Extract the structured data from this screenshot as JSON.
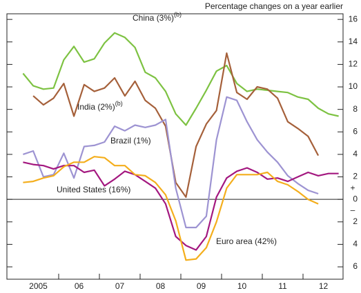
{
  "chart_data": {
    "type": "line",
    "subtitle": "Percentage changes on a year earlier",
    "categories": [
      null,
      "2005",
      null,
      null,
      null,
      "06",
      null,
      null,
      null,
      "07",
      null,
      null,
      null,
      "08",
      null,
      null,
      null,
      "09",
      null,
      null,
      null,
      "10",
      null,
      null,
      null,
      "11",
      null,
      null,
      null,
      "12",
      null,
      null
    ],
    "ylim": [
      -7.1,
      16.5
    ],
    "yticks": [
      16,
      14,
      12,
      10,
      8,
      6,
      4,
      2,
      0,
      {
        "value": -2,
        "label": "2"
      },
      {
        "value": -4,
        "label": "4"
      },
      {
        "value": -6,
        "label": "6"
      }
    ],
    "axis_signs": [
      "+",
      "–"
    ],
    "series": [
      {
        "name": "China (3%)",
        "note": "(b)",
        "color": "#7dc242",
        "values": [
          11.2,
          10.1,
          9.8,
          9.9,
          12.4,
          13.6,
          12.2,
          12.5,
          13.9,
          14.8,
          14.4,
          13.5,
          11.3,
          10.8,
          9.6,
          7.6,
          6.6,
          8.1,
          9.7,
          11.4,
          11.9,
          10.3,
          9.6,
          9.8,
          9.7,
          9.6,
          9.5,
          9.1,
          8.9,
          8.1,
          7.6,
          7.4
        ]
      },
      {
        "name": "India (2%)",
        "note": "(b)",
        "color": "#a5603a",
        "values": [
          null,
          9.2,
          8.4,
          9.0,
          10.3,
          7.4,
          10.2,
          9.6,
          9.9,
          10.8,
          9.2,
          10.5,
          8.8,
          8.1,
          6.5,
          1.5,
          0.2,
          4.7,
          6.7,
          7.9,
          13.0,
          9.5,
          8.9,
          10.0,
          9.8,
          9.0,
          6.9,
          6.3,
          5.6,
          3.9,
          null,
          null
        ]
      },
      {
        "name": "Brazil (1%)",
        "color": "#9d93d2",
        "values": [
          4.0,
          4.3,
          2.0,
          2.2,
          4.1,
          1.9,
          4.7,
          4.8,
          5.1,
          6.5,
          6.1,
          6.6,
          6.4,
          6.6,
          7.1,
          1.0,
          -2.5,
          -2.5,
          -1.5,
          5.3,
          9.1,
          8.8,
          6.9,
          5.3,
          4.2,
          3.3,
          2.1,
          1.4,
          0.8,
          0.5,
          null,
          null
        ]
      },
      {
        "name": "United States (16%)",
        "color": "#a3177f",
        "values": [
          3.3,
          3.1,
          3.0,
          2.7,
          3.0,
          3.0,
          2.4,
          2.6,
          1.2,
          1.8,
          2.5,
          2.2,
          1.6,
          1.0,
          -0.4,
          -3.3,
          -4.1,
          -4.5,
          -3.3,
          0.2,
          1.9,
          2.5,
          2.8,
          2.4,
          1.8,
          1.9,
          1.6,
          2.0,
          2.4,
          2.1,
          2.3,
          2.3
        ]
      },
      {
        "name": "Euro area (42%)",
        "color": "#f4ae1c",
        "values": [
          1.5,
          1.6,
          1.9,
          2.1,
          2.9,
          3.3,
          3.3,
          3.8,
          3.7,
          3.0,
          3.0,
          2.2,
          2.1,
          1.5,
          0.4,
          -1.9,
          -5.4,
          -5.3,
          -4.3,
          -2.0,
          1.0,
          2.2,
          2.2,
          2.2,
          2.4,
          1.6,
          1.3,
          0.7,
          0.0,
          -0.4,
          null,
          null
        ]
      }
    ]
  }
}
